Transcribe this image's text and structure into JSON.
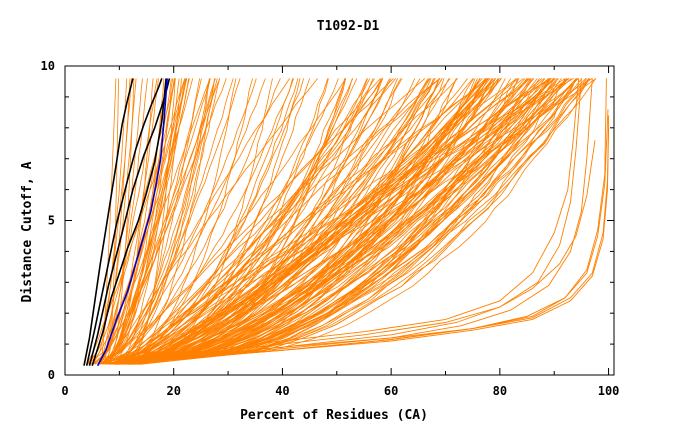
{
  "chart_data": {
    "type": "line",
    "title": "T1092-D1",
    "xlabel": "Percent of Residues (CA)",
    "ylabel": "Distance Cutoff, A",
    "xlim": [
      0,
      101
    ],
    "ylim": [
      0,
      10
    ],
    "x_ticks": [
      0,
      20,
      40,
      60,
      80,
      100
    ],
    "y_ticks": [
      0,
      5,
      10
    ],
    "grid": false,
    "legend": "none",
    "colors": {
      "background_models": "#ff8000",
      "top_models": "#000000",
      "highlight_model": "#0000cd"
    },
    "series": [
      {
        "color": "#000000",
        "x": [
          3.5,
          4.5,
          5.5,
          6.5,
          7.5,
          8.5,
          9.5,
          10.5,
          11.5,
          12.5
        ],
        "y": [
          0.3,
          1.2,
          2.4,
          3.6,
          4.7,
          5.8,
          6.9,
          8.1,
          8.9,
          9.6
        ]
      },
      {
        "color": "#000000",
        "x": [
          4,
          5.5,
          7.5,
          9.5,
          11.5,
          13,
          14.5,
          16,
          17.2,
          17.8
        ],
        "y": [
          0.3,
          1.5,
          3.2,
          4.9,
          6.3,
          7.3,
          8.1,
          8.8,
          9.3,
          9.6
        ]
      },
      {
        "color": "#000000",
        "x": [
          4.5,
          6,
          8,
          10.5,
          12.5,
          14.5,
          16.5,
          18,
          18.8,
          19.2
        ],
        "y": [
          0.3,
          1.3,
          2.9,
          4.6,
          6.0,
          7.1,
          8.0,
          8.8,
          9.3,
          9.6
        ]
      },
      {
        "color": "#000000",
        "x": [
          5,
          7,
          8.5,
          10,
          11.5,
          13.5,
          15,
          16.5,
          17.8,
          18.6
        ],
        "y": [
          0.3,
          1.4,
          2.5,
          3.3,
          4.1,
          5.0,
          5.9,
          6.9,
          8.2,
          9.6
        ]
      },
      {
        "color": "#0000cd",
        "x": [
          6,
          7.5,
          9.5,
          11.5,
          13,
          14.5,
          15.8,
          16.8,
          17.6,
          18.2,
          18.8
        ],
        "y": [
          0.3,
          0.8,
          1.8,
          2.7,
          3.6,
          4.5,
          5.3,
          6.2,
          7.0,
          8.2,
          9.6
        ]
      }
    ],
    "background_bands": [
      {
        "start_pct": [
          4,
          8
        ],
        "end_pct": [
          8,
          30
        ],
        "count": 30
      },
      {
        "start_pct": [
          6,
          12
        ],
        "end_pct": [
          20,
          60
        ],
        "count": 40
      },
      {
        "start_pct": [
          8,
          14
        ],
        "end_pct": [
          50,
          80
        ],
        "count": 45
      },
      {
        "start_pct": [
          8,
          14
        ],
        "end_pct": [
          75,
          93
        ],
        "count": 55
      },
      {
        "start_pct": [
          9,
          14
        ],
        "end_pct": [
          88,
          98
        ],
        "count": 35
      }
    ],
    "extra_background_lines": [
      {
        "x": [
          15,
          35,
          55,
          70,
          80,
          87,
          91,
          93,
          94,
          95
        ],
        "y": [
          0.5,
          0.9,
          1.3,
          1.7,
          2.2,
          3.0,
          4.2,
          5.6,
          7.3,
          9.6
        ]
      },
      {
        "x": [
          15,
          35,
          55,
          70,
          80,
          86,
          90,
          92.5,
          93.5,
          94.5
        ],
        "y": [
          0.5,
          1.0,
          1.4,
          1.8,
          2.4,
          3.3,
          4.6,
          6.0,
          7.6,
          9.6
        ]
      },
      {
        "x": [
          15,
          40,
          60,
          73,
          82,
          89,
          93,
          95,
          96,
          97
        ],
        "y": [
          0.5,
          0.9,
          1.2,
          1.6,
          2.1,
          2.9,
          4.0,
          5.3,
          7.0,
          9.6
        ]
      },
      {
        "x": [
          15,
          40,
          60,
          72,
          80,
          86,
          91,
          94,
          96,
          97.5
        ],
        "y": [
          0.45,
          0.9,
          1.3,
          1.7,
          2.2,
          2.8,
          3.6,
          4.5,
          5.8,
          7.6
        ]
      },
      {
        "x": [
          15,
          40,
          60,
          75,
          85,
          92,
          96,
          98,
          99.3,
          99.6
        ],
        "y": [
          0.45,
          0.85,
          1.2,
          1.5,
          1.9,
          2.5,
          3.4,
          4.7,
          6.5,
          9.6
        ]
      },
      {
        "x": [
          15,
          40,
          60,
          75,
          86,
          92,
          96,
          98,
          99.3,
          99.9
        ],
        "y": [
          0.45,
          0.8,
          1.15,
          1.5,
          1.9,
          2.5,
          3.3,
          4.5,
          6.2,
          8.6
        ]
      },
      {
        "x": [
          15,
          40,
          60,
          75,
          86,
          93,
          97,
          99,
          99.8,
          100
        ],
        "y": [
          0.45,
          0.8,
          1.1,
          1.45,
          1.8,
          2.4,
          3.2,
          4.4,
          6.0,
          8.0
        ]
      },
      {
        "x": [
          15,
          40,
          60,
          75,
          86,
          93,
          97,
          99,
          99.8,
          100
        ],
        "y": [
          0.45,
          0.8,
          1.15,
          1.5,
          1.85,
          2.5,
          3.3,
          4.6,
          6.3,
          8.4
        ]
      }
    ]
  }
}
